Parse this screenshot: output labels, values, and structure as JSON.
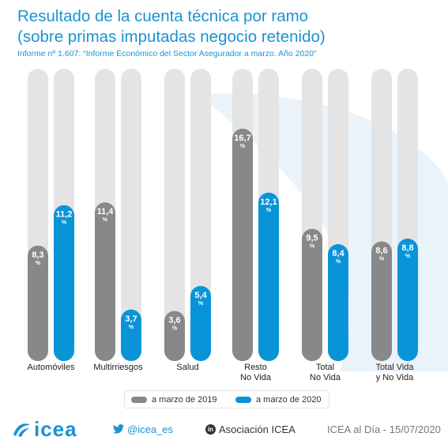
{
  "title_line1": "Resultado de la cuenta técnica por ramo",
  "title_line2": "(sobre primas imputadas negocio retenido)",
  "subtitle": "Informe nº 1.607: “Informe Económico del Sector Asegurador a marzo. Año 2020”",
  "chart_data": {
    "type": "bar",
    "categories": [
      [
        "Automóviles"
      ],
      [
        "Multirriesgos"
      ],
      [
        "Salud"
      ],
      [
        "Resto",
        "No Vida"
      ],
      [
        "Total",
        "No Vida"
      ],
      [
        "Total Vida",
        "y No Vida"
      ]
    ],
    "series": [
      {
        "name": "a marzo de 2019",
        "values": [
          8.3,
          11.4,
          3.6,
          16.7,
          9.5,
          8.6
        ],
        "labels": [
          "8,3",
          "11,4",
          "3,6",
          "16,7",
          "9,5",
          "8,6"
        ],
        "color": "#888888"
      },
      {
        "name": "a marzo de 2020",
        "values": [
          11.2,
          3.7,
          5.4,
          12.1,
          8.4,
          8.8
        ],
        "labels": [
          "11,2",
          "3,7",
          "5,4",
          "12,1",
          "8,4",
          "8,8"
        ],
        "color": "#0a94d8"
      }
    ],
    "unit": "%",
    "ylim": [
      0,
      21
    ],
    "track_color": "#e4e4e4"
  },
  "legend": {
    "item1": "a marzo de 2019",
    "item2": "a marzo de 2020"
  },
  "footer": {
    "logo": "icea",
    "twitter": "@icea_es",
    "linkedin_badge": "in",
    "linkedin": "Asociación ICEA",
    "date": "ICEA al Día - 15/07/2020"
  },
  "colors": {
    "accent": "#1a93d2",
    "bar_2019": "#888888",
    "bar_2020": "#0a94d8",
    "track": "#e4e4e4"
  },
  "icons": [
    "icea-logo-icon",
    "twitter-bird-icon",
    "linkedin-icon"
  ]
}
